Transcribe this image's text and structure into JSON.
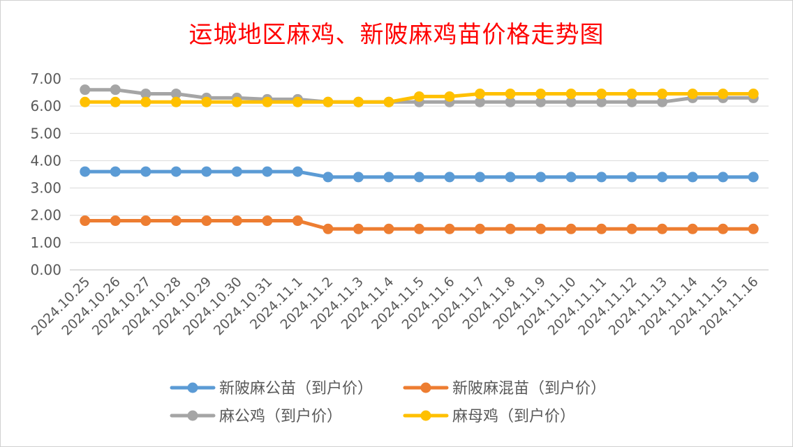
{
  "chart_data": {
    "type": "line",
    "title": "运城地区麻鸡、新陂麻鸡苗价格走势图",
    "xlabel": "",
    "ylabel": "",
    "ylim": [
      0,
      7
    ],
    "yticks": [
      "0.00",
      "1.00",
      "2.00",
      "3.00",
      "4.00",
      "5.00",
      "6.00",
      "7.00"
    ],
    "grid": true,
    "legend_position": "bottom",
    "categories": [
      "2024.10.25",
      "2024.10.26",
      "2024.10.27",
      "2024.10.28",
      "2024.10.29",
      "2024.10.30",
      "2024.10.31",
      "2024.11.1",
      "2024.11.2",
      "2024.11.3",
      "2024.11.4",
      "2024.11.5",
      "2024.11.6",
      "2024.11.7",
      "2024.11.8",
      "2024.11.9",
      "2024.11.10",
      "2024.11.11",
      "2024.11.12",
      "2024.11.13",
      "2024.11.14",
      "2024.11.15",
      "2024.11.16"
    ],
    "series": [
      {
        "name": "新陂麻公苗（到户价）",
        "color": "#5b9bd5",
        "values": [
          3.6,
          3.6,
          3.6,
          3.6,
          3.6,
          3.6,
          3.6,
          3.6,
          3.4,
          3.4,
          3.4,
          3.4,
          3.4,
          3.4,
          3.4,
          3.4,
          3.4,
          3.4,
          3.4,
          3.4,
          3.4,
          3.4,
          3.4
        ]
      },
      {
        "name": "新陂麻混苗（到户价）",
        "color": "#ed7d31",
        "values": [
          1.8,
          1.8,
          1.8,
          1.8,
          1.8,
          1.8,
          1.8,
          1.8,
          1.5,
          1.5,
          1.5,
          1.5,
          1.5,
          1.5,
          1.5,
          1.5,
          1.5,
          1.5,
          1.5,
          1.5,
          1.5,
          1.5,
          1.5
        ]
      },
      {
        "name": "麻公鸡（到户价）",
        "color": "#a5a5a5",
        "values": [
          6.6,
          6.6,
          6.45,
          6.45,
          6.3,
          6.3,
          6.25,
          6.25,
          6.15,
          6.15,
          6.15,
          6.15,
          6.15,
          6.15,
          6.15,
          6.15,
          6.15,
          6.15,
          6.15,
          6.15,
          6.3,
          6.3,
          6.3
        ]
      },
      {
        "name": "麻母鸡（到户价）",
        "color": "#ffc000",
        "values": [
          6.15,
          6.15,
          6.15,
          6.15,
          6.15,
          6.15,
          6.15,
          6.15,
          6.15,
          6.15,
          6.15,
          6.35,
          6.35,
          6.45,
          6.45,
          6.45,
          6.45,
          6.45,
          6.45,
          6.45,
          6.45,
          6.45,
          6.45
        ]
      }
    ]
  }
}
